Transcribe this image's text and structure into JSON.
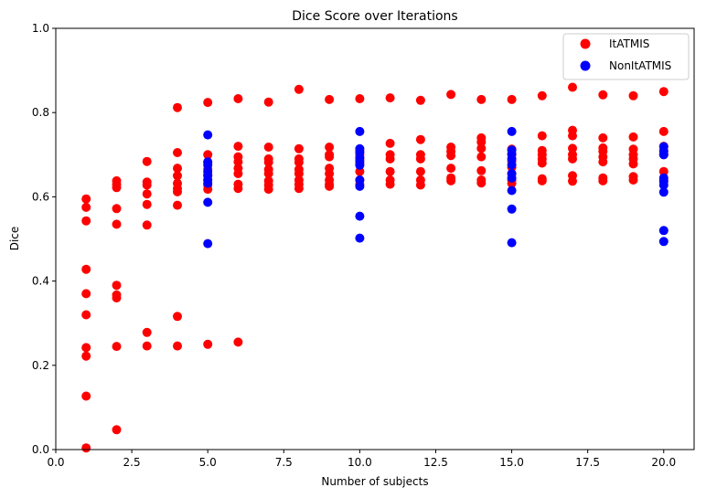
{
  "chart_data": {
    "type": "scatter",
    "title": "Dice Score over Iterations",
    "xlabel": "Number of subjects",
    "ylabel": "Dice",
    "xlim": [
      0,
      21
    ],
    "ylim": [
      0,
      1
    ],
    "xticks": [
      "0.0",
      "2.5",
      "5.0",
      "7.5",
      "10.0",
      "12.5",
      "15.0",
      "17.5",
      "20.0"
    ],
    "xtick_values": [
      0,
      2.5,
      5,
      7.5,
      10,
      12.5,
      15,
      17.5,
      20
    ],
    "yticks": [
      "0.0",
      "0.2",
      "0.4",
      "0.6",
      "0.8",
      "1.0"
    ],
    "ytick_values": [
      0,
      0.2,
      0.4,
      0.6,
      0.8,
      1.0
    ],
    "grid": false,
    "legend_position": "top-right",
    "series": [
      {
        "name": "ItATMIS",
        "color": "#ff0000",
        "points": [
          [
            1,
            0.595
          ],
          [
            1,
            0.575
          ],
          [
            1,
            0.543
          ],
          [
            1,
            0.428
          ],
          [
            1,
            0.37
          ],
          [
            1,
            0.32
          ],
          [
            1,
            0.242
          ],
          [
            1,
            0.222
          ],
          [
            1,
            0.127
          ],
          [
            1,
            0.004
          ],
          [
            2,
            0.638
          ],
          [
            2,
            0.63
          ],
          [
            2,
            0.622
          ],
          [
            2,
            0.572
          ],
          [
            2,
            0.535
          ],
          [
            2,
            0.39
          ],
          [
            2,
            0.367
          ],
          [
            2,
            0.36
          ],
          [
            2,
            0.245
          ],
          [
            2,
            0.047
          ],
          [
            3,
            0.684
          ],
          [
            3,
            0.635
          ],
          [
            3,
            0.628
          ],
          [
            3,
            0.607
          ],
          [
            3,
            0.582
          ],
          [
            3,
            0.533
          ],
          [
            3,
            0.278
          ],
          [
            3,
            0.246
          ],
          [
            4,
            0.812
          ],
          [
            4,
            0.705
          ],
          [
            4,
            0.668
          ],
          [
            4,
            0.65
          ],
          [
            4,
            0.632
          ],
          [
            4,
            0.62
          ],
          [
            4,
            0.612
          ],
          [
            4,
            0.58
          ],
          [
            4,
            0.316
          ],
          [
            4,
            0.246
          ],
          [
            5,
            0.824
          ],
          [
            5,
            0.7
          ],
          [
            5,
            0.682
          ],
          [
            5,
            0.666
          ],
          [
            5,
            0.652
          ],
          [
            5,
            0.64
          ],
          [
            5,
            0.628
          ],
          [
            5,
            0.618
          ],
          [
            5,
            0.25
          ],
          [
            6,
            0.833
          ],
          [
            6,
            0.72
          ],
          [
            6,
            0.695
          ],
          [
            6,
            0.683
          ],
          [
            6,
            0.668
          ],
          [
            6,
            0.655
          ],
          [
            6,
            0.63
          ],
          [
            6,
            0.62
          ],
          [
            6,
            0.255
          ],
          [
            7,
            0.825
          ],
          [
            7,
            0.718
          ],
          [
            7,
            0.69
          ],
          [
            7,
            0.682
          ],
          [
            7,
            0.665
          ],
          [
            7,
            0.655
          ],
          [
            7,
            0.638
          ],
          [
            7,
            0.628
          ],
          [
            7,
            0.618
          ],
          [
            8,
            0.855
          ],
          [
            8,
            0.714
          ],
          [
            8,
            0.69
          ],
          [
            8,
            0.682
          ],
          [
            8,
            0.665
          ],
          [
            8,
            0.655
          ],
          [
            8,
            0.64
          ],
          [
            8,
            0.63
          ],
          [
            8,
            0.62
          ],
          [
            9,
            0.831
          ],
          [
            9,
            0.718
          ],
          [
            9,
            0.7
          ],
          [
            9,
            0.695
          ],
          [
            9,
            0.668
          ],
          [
            9,
            0.655
          ],
          [
            9,
            0.64
          ],
          [
            9,
            0.63
          ],
          [
            9,
            0.625
          ],
          [
            10,
            0.833
          ],
          [
            10,
            0.71
          ],
          [
            10,
            0.7
          ],
          [
            10,
            0.69
          ],
          [
            10,
            0.68
          ],
          [
            10,
            0.66
          ],
          [
            10,
            0.64
          ],
          [
            10,
            0.63
          ],
          [
            11,
            0.835
          ],
          [
            11,
            0.727
          ],
          [
            11,
            0.7
          ],
          [
            11,
            0.69
          ],
          [
            11,
            0.66
          ],
          [
            11,
            0.64
          ],
          [
            11,
            0.63
          ],
          [
            12,
            0.829
          ],
          [
            12,
            0.736
          ],
          [
            12,
            0.7
          ],
          [
            12,
            0.69
          ],
          [
            12,
            0.66
          ],
          [
            12,
            0.64
          ],
          [
            12,
            0.628
          ],
          [
            13,
            0.843
          ],
          [
            13,
            0.718
          ],
          [
            13,
            0.708
          ],
          [
            13,
            0.698
          ],
          [
            13,
            0.668
          ],
          [
            13,
            0.645
          ],
          [
            13,
            0.638
          ],
          [
            14,
            0.831
          ],
          [
            14,
            0.74
          ],
          [
            14,
            0.73
          ],
          [
            14,
            0.715
          ],
          [
            14,
            0.695
          ],
          [
            14,
            0.662
          ],
          [
            14,
            0.64
          ],
          [
            14,
            0.633
          ],
          [
            15,
            0.831
          ],
          [
            15,
            0.713
          ],
          [
            15,
            0.7
          ],
          [
            15,
            0.685
          ],
          [
            15,
            0.67
          ],
          [
            15,
            0.655
          ],
          [
            15,
            0.64
          ],
          [
            15,
            0.632
          ],
          [
            16,
            0.84
          ],
          [
            16,
            0.745
          ],
          [
            16,
            0.71
          ],
          [
            16,
            0.7
          ],
          [
            16,
            0.69
          ],
          [
            16,
            0.68
          ],
          [
            16,
            0.643
          ],
          [
            16,
            0.638
          ],
          [
            17,
            0.86
          ],
          [
            17,
            0.758
          ],
          [
            17,
            0.745
          ],
          [
            17,
            0.715
          ],
          [
            17,
            0.7
          ],
          [
            17,
            0.69
          ],
          [
            17,
            0.65
          ],
          [
            17,
            0.637
          ],
          [
            18,
            0.842
          ],
          [
            18,
            0.74
          ],
          [
            18,
            0.716
          ],
          [
            18,
            0.708
          ],
          [
            18,
            0.695
          ],
          [
            18,
            0.683
          ],
          [
            18,
            0.645
          ],
          [
            18,
            0.638
          ],
          [
            19,
            0.84
          ],
          [
            19,
            0.742
          ],
          [
            19,
            0.713
          ],
          [
            19,
            0.7
          ],
          [
            19,
            0.69
          ],
          [
            19,
            0.678
          ],
          [
            19,
            0.648
          ],
          [
            19,
            0.64
          ],
          [
            20,
            0.85
          ],
          [
            20,
            0.755
          ],
          [
            20,
            0.72
          ],
          [
            20,
            0.71
          ],
          [
            20,
            0.7
          ],
          [
            20,
            0.66
          ],
          [
            20,
            0.64
          ]
        ]
      },
      {
        "name": "NonItATMIS",
        "color": "#0000ff",
        "points": [
          [
            5,
            0.747
          ],
          [
            5,
            0.683
          ],
          [
            5,
            0.676
          ],
          [
            5,
            0.66
          ],
          [
            5,
            0.65
          ],
          [
            5,
            0.64
          ],
          [
            5,
            0.632
          ],
          [
            5,
            0.587
          ],
          [
            5,
            0.489
          ],
          [
            10,
            0.755
          ],
          [
            10,
            0.714
          ],
          [
            10,
            0.706
          ],
          [
            10,
            0.693
          ],
          [
            10,
            0.685
          ],
          [
            10,
            0.675
          ],
          [
            10,
            0.64
          ],
          [
            10,
            0.625
          ],
          [
            10,
            0.554
          ],
          [
            10,
            0.502
          ],
          [
            15,
            0.755
          ],
          [
            15,
            0.711
          ],
          [
            15,
            0.702
          ],
          [
            15,
            0.69
          ],
          [
            15,
            0.676
          ],
          [
            15,
            0.655
          ],
          [
            15,
            0.645
          ],
          [
            15,
            0.615
          ],
          [
            15,
            0.571
          ],
          [
            15,
            0.491
          ],
          [
            20,
            0.719
          ],
          [
            20,
            0.708
          ],
          [
            20,
            0.7
          ],
          [
            20,
            0.645
          ],
          [
            20,
            0.636
          ],
          [
            20,
            0.628
          ],
          [
            20,
            0.611
          ],
          [
            20,
            0.52
          ],
          [
            20,
            0.494
          ]
        ]
      }
    ]
  }
}
